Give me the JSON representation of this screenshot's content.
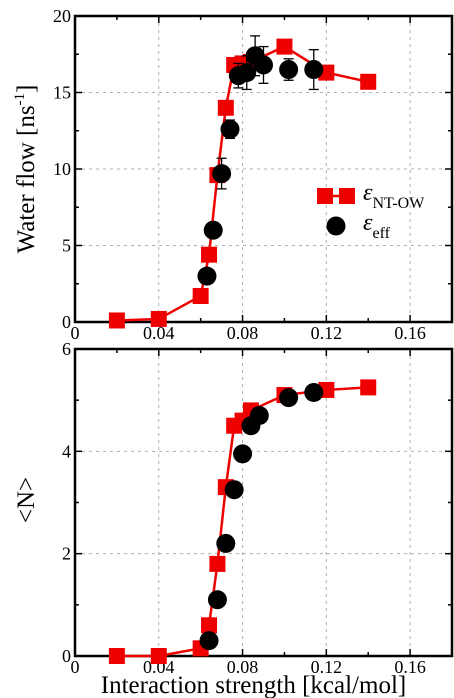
{
  "chart_data": [
    {
      "type": "line",
      "ylabel": "Water flow [ns",
      "ylabel_sup": "-1",
      "ylabel_close": "]",
      "xlabel": "",
      "xlim": [
        0,
        0.18
      ],
      "ylim": [
        0,
        20
      ],
      "grid": true,
      "legend_position": "right-middle",
      "x_ticks": [
        0,
        0.04,
        0.08,
        0.12,
        0.16
      ],
      "x_tick_labels": [
        "0",
        "0.04",
        "0.08",
        "0.12",
        "0.16"
      ],
      "y_ticks": [
        0,
        5,
        10,
        15,
        20
      ],
      "y_tick_labels": [
        "0",
        "5",
        "10",
        "15",
        "20"
      ],
      "series": [
        {
          "legend_symbol": "ε",
          "legend_subscript": "NT-OW",
          "marker": "square",
          "color": "#ee0000",
          "line": true,
          "x": [
            0.02,
            0.04,
            0.06,
            0.064,
            0.068,
            0.072,
            0.076,
            0.08,
            0.084,
            0.1,
            0.12,
            0.14
          ],
          "y": [
            0.1,
            0.2,
            1.7,
            4.4,
            9.6,
            14.0,
            16.8,
            16.9,
            17.0,
            18.0,
            16.3,
            15.7
          ]
        },
        {
          "legend_symbol": "ε",
          "legend_subscript": "eff",
          "marker": "circle",
          "color": "#000000",
          "line": false,
          "x": [
            0.063,
            0.066,
            0.07,
            0.074,
            0.078,
            0.082,
            0.086,
            0.09,
            0.102,
            0.114
          ],
          "y": [
            3.0,
            6.0,
            9.7,
            12.6,
            16.1,
            16.3,
            17.4,
            16.8,
            16.5,
            16.5
          ],
          "error": [
            0,
            0,
            1.0,
            0.6,
            0.8,
            1.1,
            1.3,
            1.2,
            0.7,
            1.3
          ]
        }
      ]
    },
    {
      "type": "line",
      "ylabel": "<N>",
      "xlabel": "Interaction strength [kcal/mol]",
      "xlim": [
        0,
        0.18
      ],
      "ylim": [
        0,
        6
      ],
      "grid": true,
      "x_ticks": [
        0,
        0.04,
        0.08,
        0.12,
        0.16
      ],
      "x_tick_labels": [
        "0",
        "0.04",
        "0.08",
        "0.12",
        "0.16"
      ],
      "y_ticks": [
        0,
        2,
        4,
        6
      ],
      "y_tick_labels": [
        "0",
        "2",
        "4",
        "6"
      ],
      "series": [
        {
          "marker": "square",
          "color": "#ee0000",
          "line": true,
          "x": [
            0.02,
            0.04,
            0.06,
            0.064,
            0.068,
            0.072,
            0.076,
            0.08,
            0.084,
            0.1,
            0.12,
            0.14
          ],
          "y": [
            0.0,
            0.0,
            0.15,
            0.6,
            1.8,
            3.3,
            4.5,
            4.6,
            4.8,
            5.1,
            5.2,
            5.25
          ]
        },
        {
          "marker": "circle",
          "color": "#000000",
          "line": false,
          "x": [
            0.064,
            0.068,
            0.072,
            0.076,
            0.08,
            0.084,
            0.088,
            0.102,
            0.114
          ],
          "y": [
            0.3,
            1.1,
            2.2,
            3.25,
            3.95,
            4.5,
            4.7,
            5.05,
            5.15
          ]
        }
      ]
    }
  ]
}
